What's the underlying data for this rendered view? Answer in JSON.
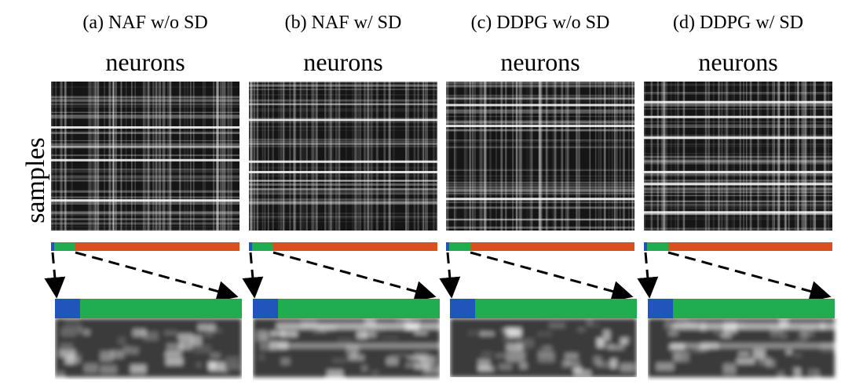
{
  "y_label": "samples",
  "panels": [
    {
      "title": "(a) NAF w/o SD",
      "x_label": "neurons"
    },
    {
      "title": "(b) NAF w/ SD",
      "x_label": "neurons"
    },
    {
      "title": "(c) DDPG w/o SD",
      "x_label": "neurons"
    },
    {
      "title": "(d) DDPG w/ SD",
      "x_label": "neurons"
    }
  ]
}
